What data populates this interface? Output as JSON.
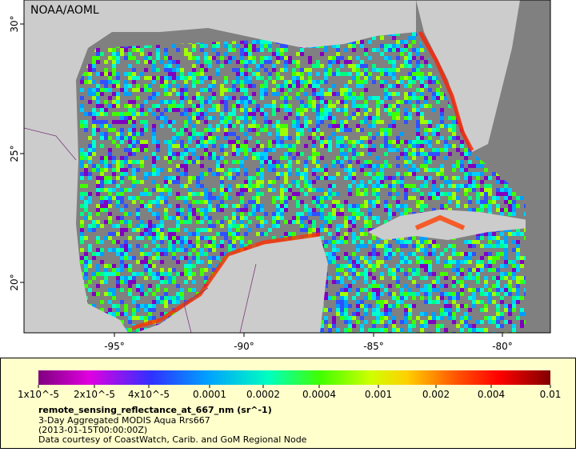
{
  "map": {
    "credit": "NOAA/AOML",
    "lat_ticks": [
      "30°",
      "25°",
      "20°"
    ],
    "lon_ticks": [
      "-95°",
      "-90°",
      "-85°",
      "-80°"
    ]
  },
  "legend": {
    "scale_labels": [
      "1x10^-5",
      "2x10^-5",
      "4x10^-5",
      "0.0001",
      "0.0002",
      "0.0004",
      "0.001",
      "0.002",
      "0.004",
      "0.01"
    ],
    "variable": "remote_sensing_reflectance_at_667_nm (sr^-1)",
    "description": "3-Day Aggregated MODIS Aqua Rrs667",
    "time": "(2013-01-15T00:00:00Z)",
    "source": "Data courtesy of CoastWatch, Carib. and GoM Regional Node"
  }
}
